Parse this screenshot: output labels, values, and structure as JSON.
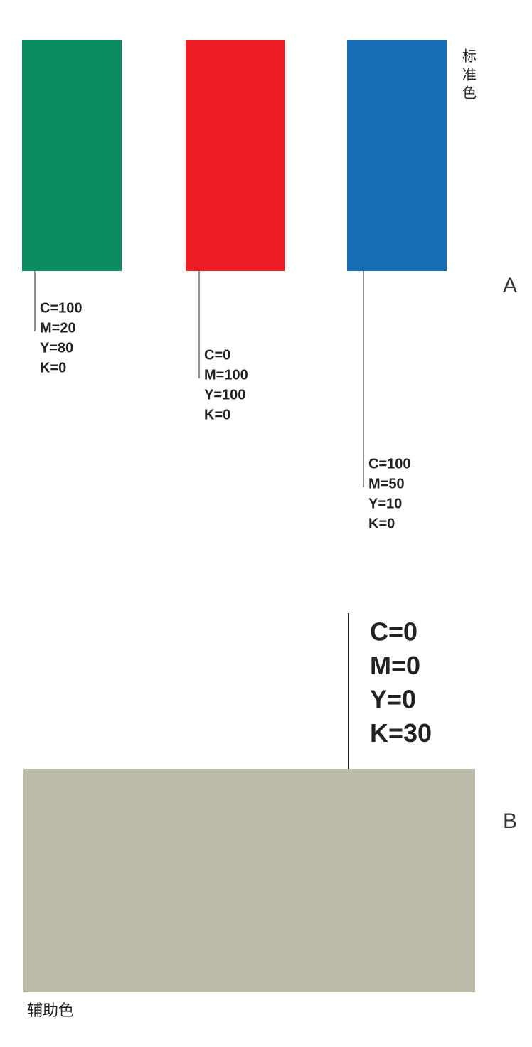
{
  "standard": {
    "title": "标准色",
    "section": "A",
    "swatches": [
      {
        "color": "#0b8c60",
        "specs": [
          "C=100",
          "M=20",
          "Y=80",
          "K=0"
        ]
      },
      {
        "color": "#ec1c24",
        "specs": [
          "C=0",
          "M=100",
          "Y=100",
          "K=0"
        ]
      },
      {
        "color": "#176db3",
        "specs": [
          "C=100",
          "M=50",
          "Y=10",
          "K=0"
        ]
      }
    ]
  },
  "auxiliary": {
    "title": "辅助色",
    "section": "B",
    "swatch": {
      "color": "#bcbbaa",
      "specs": [
        "C=0",
        "M=0",
        "Y=0",
        "K=30"
      ]
    }
  }
}
